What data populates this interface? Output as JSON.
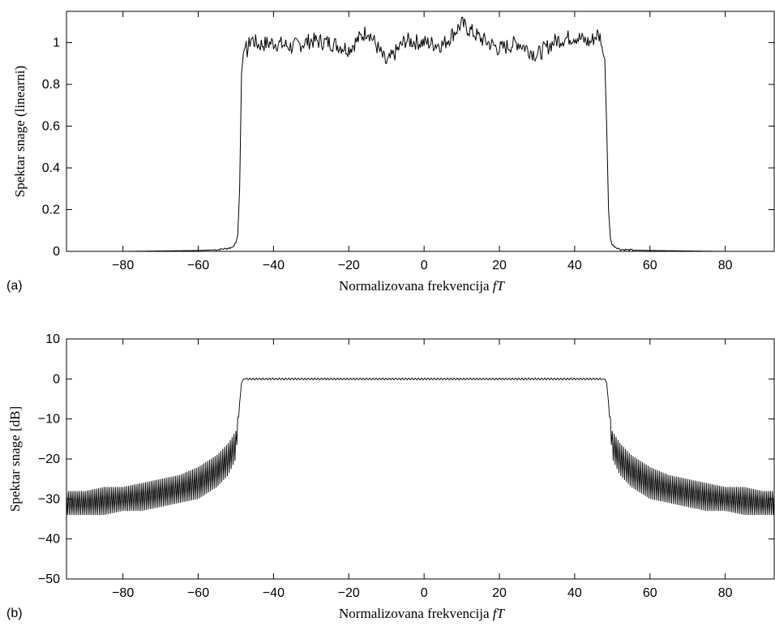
{
  "chart_data": [
    {
      "panel_label": "(a)",
      "type": "line",
      "xlabel": "Normalizovana frekvencija",
      "xlabel_italic": "fT",
      "ylabel": "Spektar snage (linearni)",
      "xlim": [
        -95,
        93
      ],
      "ylim": [
        0,
        1.15
      ],
      "xticks": [
        -80,
        -60,
        -40,
        -20,
        0,
        20,
        40,
        60,
        80
      ],
      "xtick_labels": [
        "−80",
        "−60",
        "−40",
        "−20",
        "0",
        "20",
        "40",
        "60",
        "80"
      ],
      "yticks": [
        0,
        0.2,
        0.4,
        0.6,
        0.8,
        1
      ],
      "ytick_labels": [
        "0",
        "0.2",
        "0.4",
        "0.6",
        "0.8",
        "1"
      ],
      "grid": false,
      "series": [
        {
          "x": [
            -95,
            -80,
            -70,
            -60,
            -55,
            -52,
            -51,
            -50,
            -49.5,
            -49,
            -48.5,
            -48,
            -47.5,
            -47,
            -46,
            -44,
            -40,
            -35,
            -30,
            -25,
            -20,
            -15,
            -10,
            -5,
            0,
            5,
            10,
            15,
            20,
            25,
            30,
            35,
            40,
            44,
            46,
            47,
            47.5,
            48,
            48.5,
            49,
            49.5,
            50,
            51,
            52,
            55,
            60,
            70,
            80,
            93
          ],
          "y": [
            0.0,
            0.0,
            0.002,
            0.004,
            0.008,
            0.015,
            0.02,
            0.04,
            0.08,
            0.3,
            0.85,
            0.95,
            0.98,
            0.96,
            1.02,
            0.99,
            1.0,
            0.98,
            1.01,
            1.0,
            0.97,
            1.06,
            0.9,
            1.01,
            1.0,
            0.99,
            1.09,
            1.02,
            0.97,
            1.0,
            0.94,
            1.01,
            1.03,
            1.0,
            1.04,
            1.02,
            0.95,
            0.92,
            0.6,
            0.2,
            0.06,
            0.03,
            0.02,
            0.01,
            0.006,
            0.004,
            0.002,
            0.0,
            0.0
          ]
        }
      ]
    },
    {
      "panel_label": "(b)",
      "type": "line",
      "xlabel": "Normalizovana frekvencija",
      "xlabel_italic": "fT",
      "ylabel": "Spektar snage [dB]",
      "xlim": [
        -95,
        93
      ],
      "ylim": [
        -50,
        10
      ],
      "xticks": [
        -80,
        -60,
        -40,
        -20,
        0,
        20,
        40,
        60,
        80
      ],
      "xtick_labels": [
        "−80",
        "−60",
        "−40",
        "−20",
        "0",
        "20",
        "40",
        "60",
        "80"
      ],
      "yticks": [
        -50,
        -40,
        -30,
        -20,
        -10,
        0,
        10
      ],
      "ytick_labels": [
        "−50",
        "−40",
        "−30",
        "−20",
        "−10",
        "0",
        "10"
      ],
      "grid": false,
      "series": [
        {
          "x": [
            -95,
            -90,
            -85,
            -80,
            -75,
            -70,
            -65,
            -60,
            -55,
            -52,
            -50,
            -49,
            -48.5,
            -48,
            -40,
            -20,
            0,
            20,
            40,
            48,
            48.5,
            49,
            50,
            52,
            55,
            60,
            65,
            70,
            75,
            80,
            85,
            90,
            93
          ],
          "y_upper": [
            -28,
            -28,
            -27,
            -27,
            -26,
            -25,
            -24,
            -22,
            -19,
            -16,
            -13,
            -6,
            -1,
            0,
            0,
            0,
            0,
            0,
            0,
            0,
            -1,
            -6,
            -13,
            -16,
            -19,
            -22,
            -24,
            -25,
            -26,
            -27,
            -27,
            -28,
            -28
          ],
          "y_lower": [
            -34,
            -34,
            -34,
            -33,
            -33,
            -32,
            -31,
            -30,
            -27,
            -24,
            -20,
            -6,
            -1,
            0,
            0,
            0,
            0,
            0,
            0,
            0,
            -1,
            -6,
            -20,
            -24,
            -27,
            -30,
            -31,
            -32,
            -33,
            -33,
            -34,
            -34,
            -34
          ]
        }
      ]
    }
  ]
}
